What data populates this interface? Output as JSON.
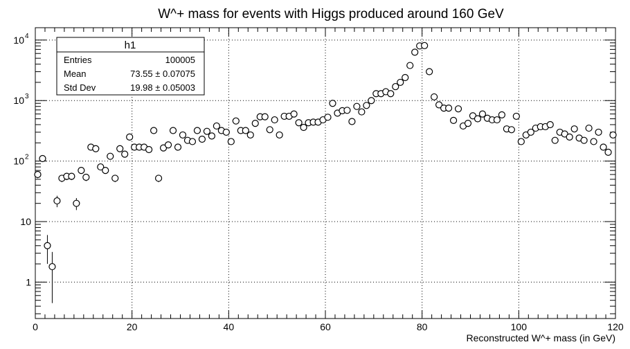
{
  "chart_data": {
    "type": "scatter",
    "title": "W^+ mass for events with Higgs produced around 160 GeV",
    "xlabel": "Reconstructed W^+ mass (in GeV)",
    "ylabel": "",
    "xlim": [
      0,
      120
    ],
    "ylim": [
      0.25,
      16000
    ],
    "ylog": true,
    "grid": true,
    "x_tick_labels": [
      "0",
      "20",
      "40",
      "60",
      "80",
      "100",
      "120"
    ],
    "y_tick_labels": [
      "1",
      "10",
      "10^2",
      "10^3",
      "10^4"
    ],
    "stats_box": {
      "name": "h1",
      "rows": [
        {
          "label": "Entries",
          "value": "100005"
        },
        {
          "label": "Mean",
          "value": "73.55 ± 0.07075"
        },
        {
          "label": "Std Dev",
          "value": "19.98 ± 0.05003"
        }
      ]
    },
    "x": [
      0.5,
      1.5,
      2.5,
      3.5,
      4.5,
      5.5,
      6.5,
      7.5,
      8.5,
      9.5,
      10.5,
      11.5,
      12.5,
      13.5,
      14.5,
      15.5,
      16.5,
      17.5,
      18.5,
      19.5,
      20.5,
      21.5,
      22.5,
      23.5,
      24.5,
      25.5,
      26.5,
      27.5,
      28.5,
      29.5,
      30.5,
      31.5,
      32.5,
      33.5,
      34.5,
      35.5,
      36.5,
      37.5,
      38.5,
      39.5,
      40.5,
      41.5,
      42.5,
      43.5,
      44.5,
      45.5,
      46.5,
      47.5,
      48.5,
      49.5,
      50.5,
      51.5,
      52.5,
      53.5,
      54.5,
      55.5,
      56.5,
      57.5,
      58.5,
      59.5,
      60.5,
      61.5,
      62.5,
      63.5,
      64.5,
      65.5,
      66.5,
      67.5,
      68.5,
      69.5,
      70.5,
      71.5,
      72.5,
      73.5,
      74.5,
      75.5,
      76.5,
      77.5,
      78.5,
      79.5,
      80.5,
      81.5,
      82.5,
      83.5,
      84.5,
      85.5,
      86.5,
      87.5,
      88.5,
      89.5,
      90.5,
      91.5,
      92.5,
      93.5,
      94.5,
      95.5,
      96.5,
      97.5,
      98.5,
      99.5,
      100.5,
      101.5,
      102.5,
      103.5,
      104.5,
      105.5,
      106.5,
      107.5,
      108.5,
      109.5,
      110.5,
      111.5,
      112.5,
      113.5,
      114.5,
      115.5,
      116.5,
      117.5,
      118.5,
      119.5
    ],
    "y": [
      60,
      110,
      4,
      1.8,
      22,
      52,
      56,
      56,
      20,
      70,
      54,
      170,
      160,
      80,
      70,
      120,
      52,
      160,
      130,
      250,
      170,
      170,
      170,
      155,
      320,
      52,
      165,
      185,
      320,
      170,
      270,
      220,
      210,
      320,
      230,
      310,
      260,
      380,
      320,
      300,
      210,
      460,
      320,
      320,
      270,
      420,
      540,
      540,
      330,
      480,
      270,
      550,
      550,
      600,
      430,
      360,
      430,
      440,
      440,
      480,
      530,
      900,
      620,
      680,
      690,
      450,
      800,
      650,
      830,
      1000,
      1300,
      1300,
      1400,
      1300,
      1700,
      2000,
      2400,
      3800,
      6300,
      8000,
      8100,
      3000,
      1150,
      850,
      750,
      750,
      470,
      730,
      380,
      420,
      560,
      500,
      600,
      510,
      480,
      480,
      580,
      340,
      330,
      550,
      210,
      270,
      300,
      350,
      370,
      370,
      400,
      220,
      300,
      280,
      250,
      340,
      240,
      220,
      350,
      210,
      300,
      170,
      140,
      270
    ],
    "y_err": [
      8,
      10.5,
      2,
      1.35,
      4.7,
      7.2,
      7.5,
      7.5,
      4.5,
      8.4,
      7.3,
      13,
      12.6,
      8.9,
      8.4,
      11,
      7.2,
      12.6,
      11.4,
      15.8,
      13,
      13,
      13,
      12.4,
      17.9,
      7.2,
      12.8,
      13.6,
      17.9,
      13,
      16.4,
      14.8,
      14.5,
      17.9,
      15.2,
      17.6,
      16.1,
      19.5,
      17.9,
      17.3,
      14.5,
      21.4,
      17.9,
      17.9,
      16.4,
      20.5,
      23.2,
      23.2,
      18.2,
      21.9,
      16.4,
      23.5,
      23.5,
      24.5,
      20.7,
      19,
      20.7,
      21,
      21,
      21.9,
      23,
      30,
      24.9,
      26.1,
      26.3,
      21.2,
      28.3,
      25.5,
      28.8,
      31.6,
      36.1,
      36.1,
      37.4,
      36.1,
      41.2,
      44.7,
      49,
      61.6,
      79.4,
      89.4,
      90,
      54.8,
      33.9,
      29.2,
      27.4,
      27.4,
      21.7,
      27,
      19.5,
      20.5,
      23.7,
      22.4,
      24.5,
      22.6,
      21.9,
      21.9,
      24.1,
      18.4,
      18.2,
      23.5,
      14.5,
      16.4,
      17.3,
      18.7,
      19.2,
      19.2,
      20,
      14.8,
      17.3,
      16.7,
      15.8,
      18.4,
      15.5,
      14.8,
      18.7,
      14.5,
      17.3,
      13,
      11.8,
      16.4
    ]
  }
}
